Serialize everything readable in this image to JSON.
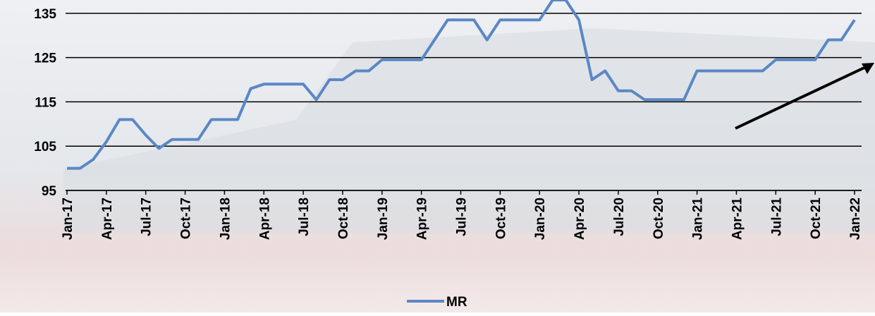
{
  "chart_data": {
    "type": "line",
    "categories": [
      "Jan-17",
      null,
      null,
      "Apr-17",
      null,
      null,
      "Jul-17",
      null,
      null,
      "Oct-17",
      null,
      null,
      "Jan-18",
      null,
      null,
      "Apr-18",
      null,
      null,
      "Jul-18",
      null,
      null,
      "Oct-18",
      null,
      null,
      "Jan-19",
      null,
      null,
      "Apr-19",
      null,
      null,
      "Jul-19",
      null,
      null,
      "Oct-19",
      null,
      null,
      "Jan-20",
      null,
      null,
      "Apr-20",
      null,
      null,
      "Jul-20",
      null,
      null,
      "Oct-20",
      null,
      null,
      "Jan-21",
      null,
      null,
      "Apr-21",
      null,
      null,
      "Jul-21",
      null,
      null,
      "Oct-21",
      null,
      null,
      "Jan-22"
    ],
    "series": [
      {
        "name": "MR",
        "color": "#5b87c5",
        "values": [
          100,
          100,
          102,
          106,
          111,
          111,
          107.5,
          104.5,
          106.5,
          106.5,
          106.5,
          111,
          111,
          111,
          118,
          119,
          119,
          119,
          119,
          115.5,
          120,
          120,
          122,
          122,
          124.5,
          124.5,
          124.5,
          124.5,
          129,
          133.5,
          133.5,
          133.5,
          129,
          133.5,
          133.5,
          133.5,
          133.5,
          138,
          138,
          133.5,
          120,
          122,
          117.5,
          117.5,
          115.5,
          115.5,
          115.5,
          115.5,
          122,
          122,
          122,
          122,
          122,
          122,
          124.5,
          124.5,
          124.5,
          124.5,
          129,
          129,
          133.5
        ]
      }
    ],
    "ylim": [
      95,
      138
    ],
    "yticks": [
      95,
      105,
      115,
      125,
      135
    ],
    "grid": true,
    "legend": "bottom"
  }
}
